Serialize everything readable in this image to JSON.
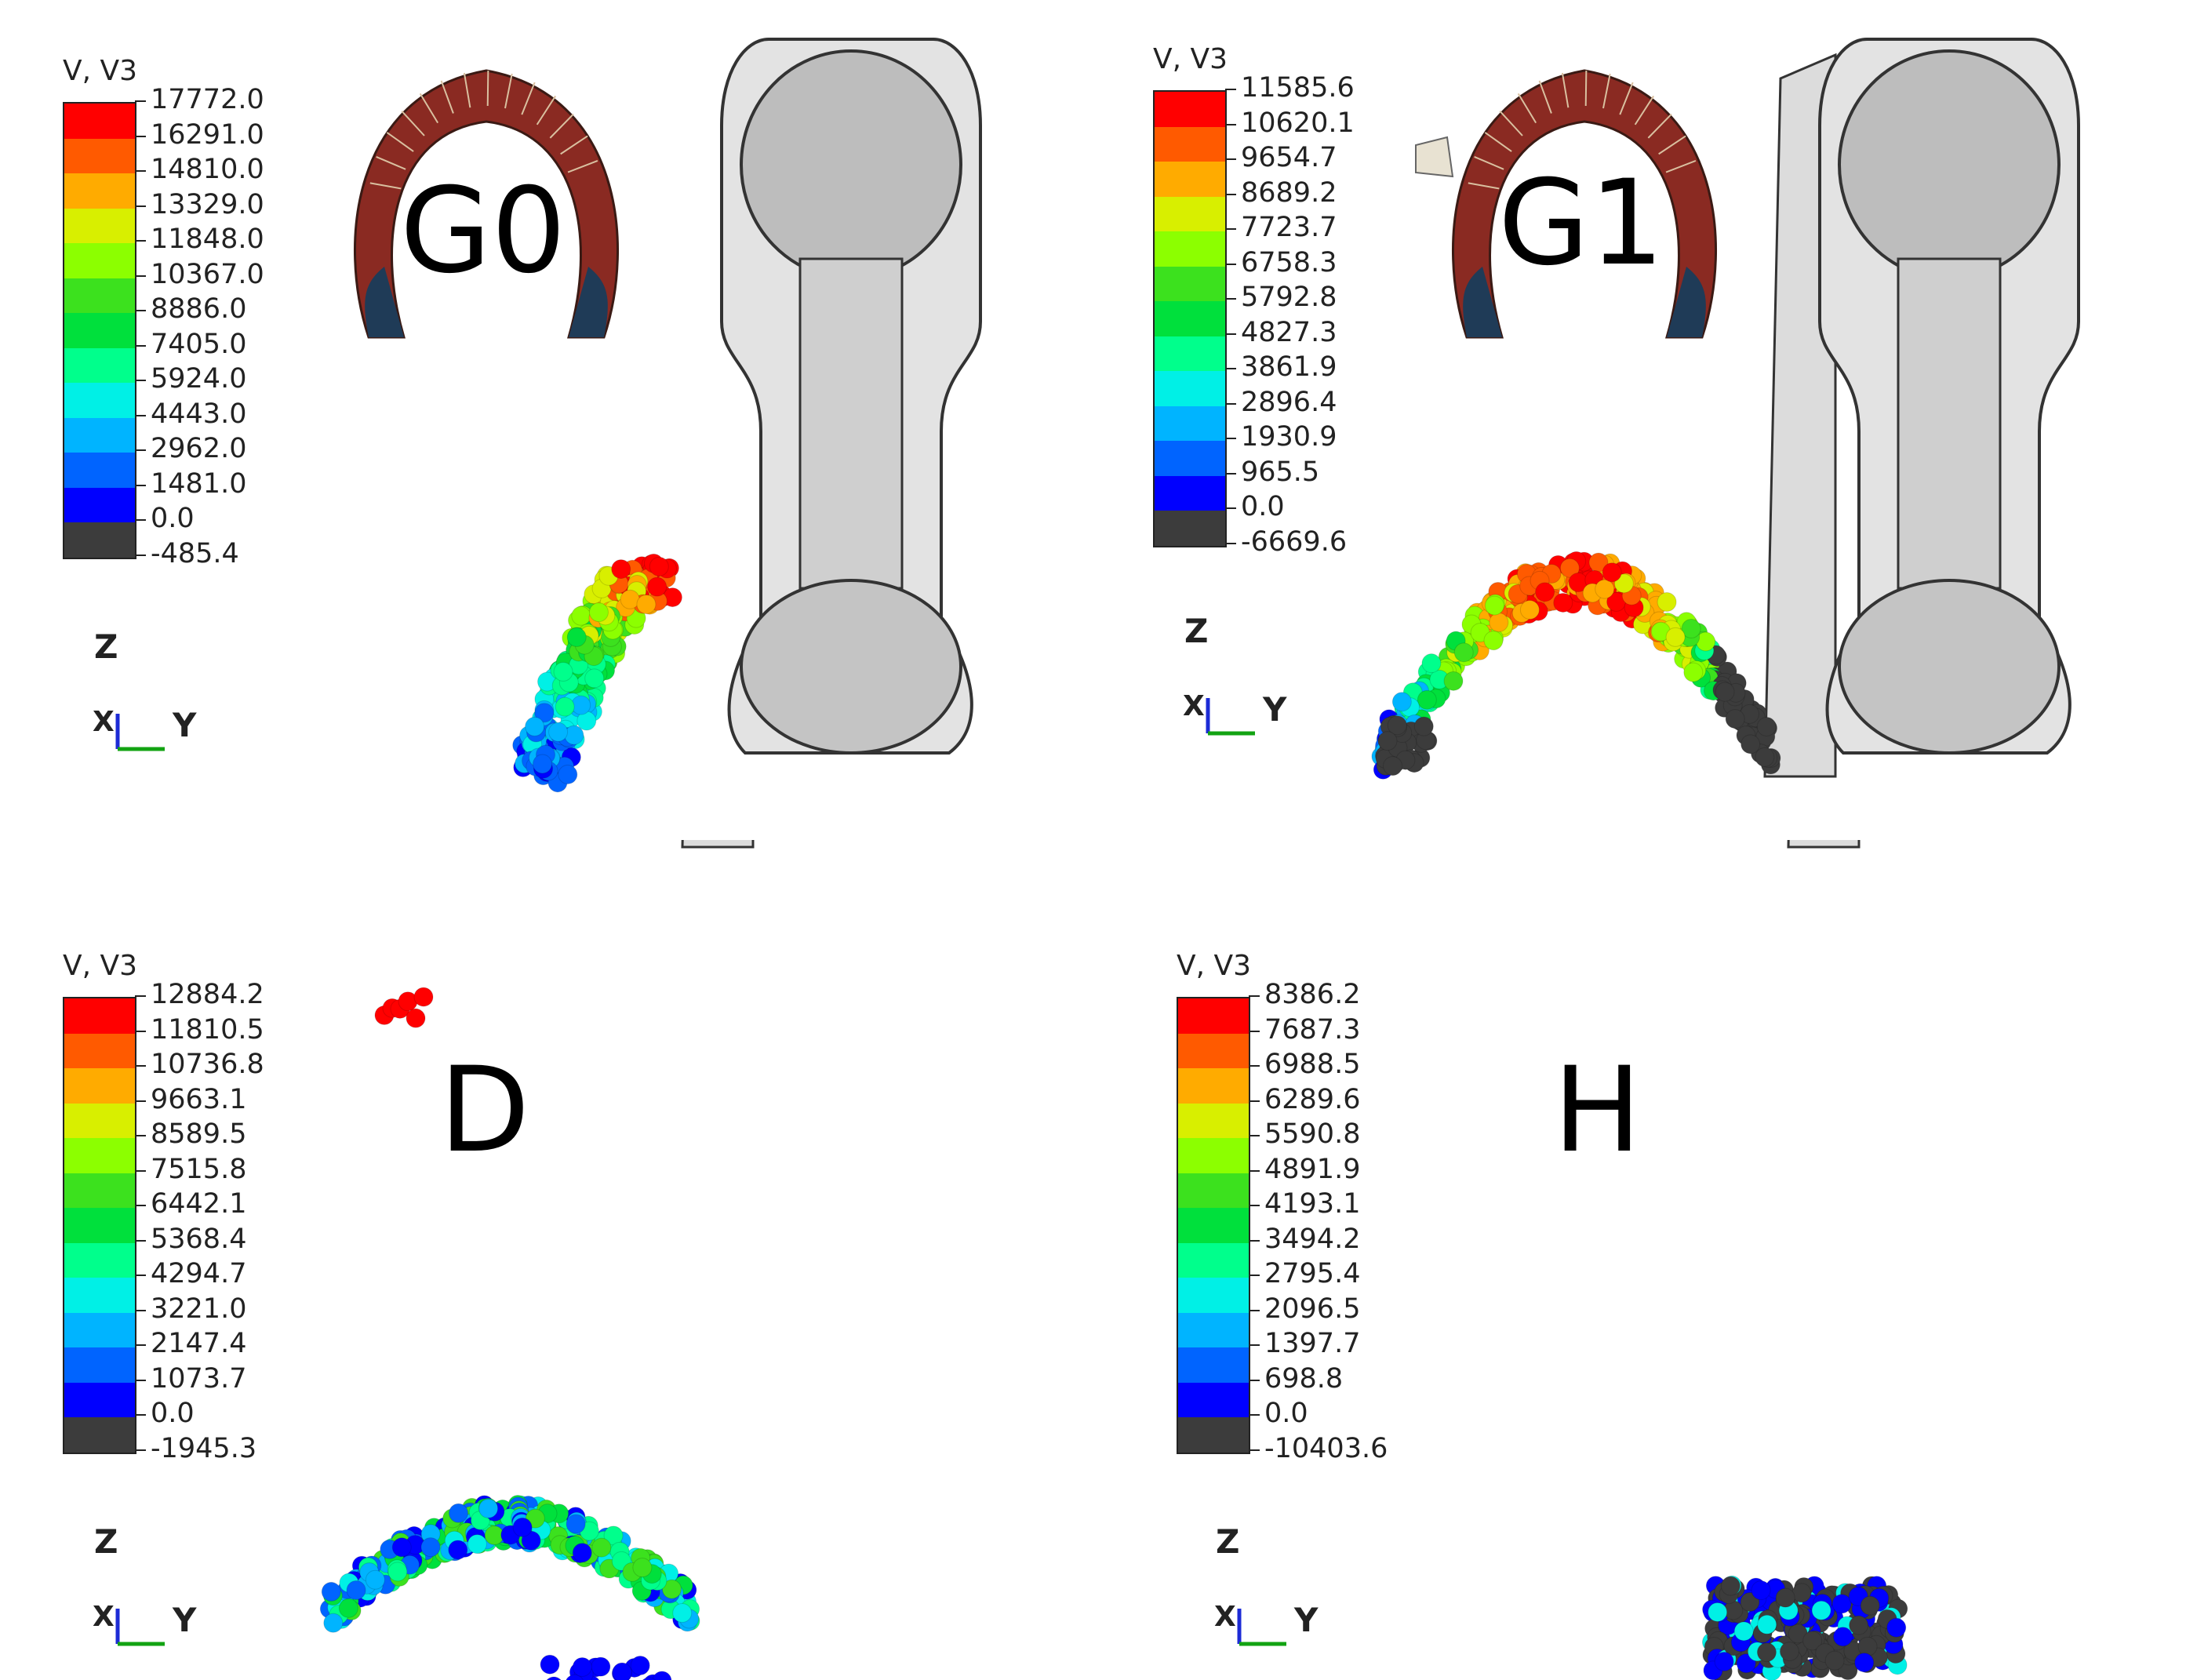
{
  "colors": [
    "#ff0000",
    "#ff5a00",
    "#ffab00",
    "#d8ef00",
    "#8cff00",
    "#3ce11e",
    "#00e03c",
    "#00ff8c",
    "#00f0e6",
    "#00b4ff",
    "#0064ff",
    "#0000ff",
    "#3c3c3c"
  ],
  "axes": {
    "z": "Z",
    "y": "Y",
    "x": "X",
    "mini": "z\n• y"
  },
  "panels": [
    {
      "id": "G0",
      "label": "G0",
      "legend_title": "V, V3",
      "ticks": [
        "17772.0",
        "16291.0",
        "14810.0",
        "13329.0",
        "11848.0",
        "10367.0",
        "8886.0",
        "7405.0",
        "5924.0",
        "4443.0",
        "2962.0",
        "1481.0",
        "0.0",
        "-485.4"
      ]
    },
    {
      "id": "G1",
      "label": "G1",
      "legend_title": "V, V3",
      "ticks": [
        "11585.6",
        "10620.1",
        "9654.7",
        "8689.2",
        "7723.7",
        "6758.3",
        "5792.8",
        "4827.3",
        "3861.9",
        "2896.4",
        "1930.9",
        "965.5",
        "0.0",
        "-6669.6"
      ]
    },
    {
      "id": "D",
      "label": "D",
      "legend_title": "V, V3",
      "ticks": [
        "12884.2",
        "11810.5",
        "10736.8",
        "9663.1",
        "8589.5",
        "7515.8",
        "6442.1",
        "5368.4",
        "4294.7",
        "3221.0",
        "2147.4",
        "1073.7",
        "0.0",
        "-1945.3"
      ]
    },
    {
      "id": "H",
      "label": "H",
      "legend_title": "V, V3",
      "ticks": [
        "8386.2",
        "7687.3",
        "6988.5",
        "6289.6",
        "5590.8",
        "4891.9",
        "4193.1",
        "3494.2",
        "2795.4",
        "2096.5",
        "1397.7",
        "698.8",
        "0.0",
        "-10403.6"
      ]
    }
  ]
}
